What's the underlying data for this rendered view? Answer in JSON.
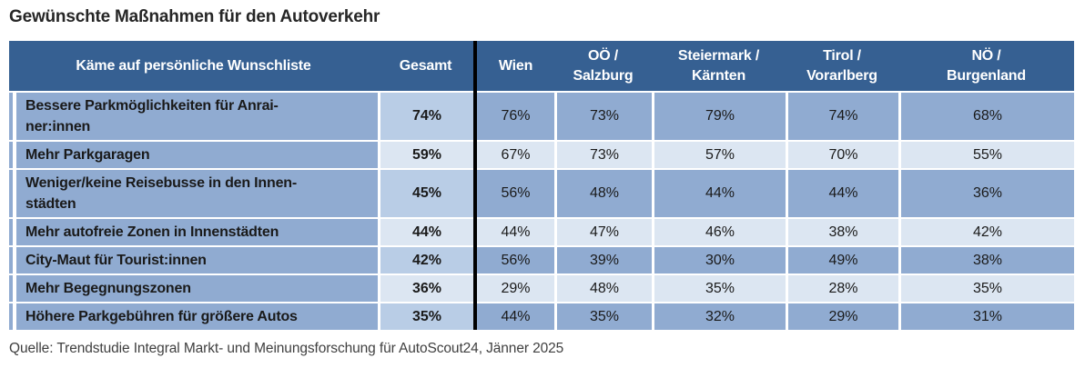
{
  "title": "Gewünschte Maßnahmen für den Autoverkehr",
  "source": "Quelle: Trendstudie Integral Markt- und Meinungsforschung für AutoScout24, Jänner 2025",
  "colors": {
    "header_bg": "#366092",
    "cell_medium": "#90ABD1",
    "cell_gesamt": "#B9CDE6",
    "cell_light": "#DCE6F2",
    "divider": "#000000",
    "header_text": "#FFFFFF",
    "text": "#1A1A1A",
    "title_text": "#262626",
    "source_text": "#3F3F3F"
  },
  "table": {
    "header": {
      "wishlist": "Käme auf persönliche Wunschliste",
      "gesamt": "Gesamt",
      "regions": [
        {
          "line1": "Wien",
          "line2": ""
        },
        {
          "line1": "OÖ /",
          "line2": "Salzburg"
        },
        {
          "line1": "Steiermark /",
          "line2": "Kärnten"
        },
        {
          "line1": "Tirol /",
          "line2": "Vorarlberg"
        },
        {
          "line1": "NÖ /",
          "line2": "Burgenland"
        }
      ]
    },
    "rows": [
      {
        "label": "Bessere Parkmöglichkeiten für Anrai-\nner:innen",
        "gesamt": "74%",
        "wien": "76%",
        "ooe_salzburg": "73%",
        "steiermark_kaernten": "79%",
        "tirol_vorarlberg": "74%",
        "noe_burgenland": "68%"
      },
      {
        "label": "Mehr Parkgaragen",
        "gesamt": "59%",
        "wien": "67%",
        "ooe_salzburg": "73%",
        "steiermark_kaernten": "57%",
        "tirol_vorarlberg": "70%",
        "noe_burgenland": "55%"
      },
      {
        "label": "Weniger/keine Reisebusse in den Innen-\nstädten",
        "gesamt": "45%",
        "wien": "56%",
        "ooe_salzburg": "48%",
        "steiermark_kaernten": "44%",
        "tirol_vorarlberg": "44%",
        "noe_burgenland": "36%"
      },
      {
        "label": "Mehr autofreie Zonen in Innenstädten",
        "gesamt": "44%",
        "wien": "44%",
        "ooe_salzburg": "47%",
        "steiermark_kaernten": "46%",
        "tirol_vorarlberg": "38%",
        "noe_burgenland": "42%"
      },
      {
        "label": "City-Maut für Tourist:innen",
        "gesamt": "42%",
        "wien": "56%",
        "ooe_salzburg": "39%",
        "steiermark_kaernten": "30%",
        "tirol_vorarlberg": "49%",
        "noe_burgenland": "38%"
      },
      {
        "label": "Mehr Begegnungszonen",
        "gesamt": "36%",
        "wien": "29%",
        "ooe_salzburg": "48%",
        "steiermark_kaernten": "35%",
        "tirol_vorarlberg": "28%",
        "noe_burgenland": "35%"
      },
      {
        "label": "Höhere Parkgebühren für größere Autos",
        "gesamt": "35%",
        "wien": "44%",
        "ooe_salzburg": "35%",
        "steiermark_kaernten": "32%",
        "tirol_vorarlberg": "29%",
        "noe_burgenland": "31%"
      }
    ]
  },
  "chart_data": {
    "type": "table",
    "title": "Gewünschte Maßnahmen für den Autoverkehr",
    "columns": [
      "Käme auf persönliche Wunschliste",
      "Gesamt",
      "Wien",
      "OÖ / Salzburg",
      "Steiermark / Kärnten",
      "Tirol / Vorarlberg",
      "NÖ / Burgenland"
    ],
    "rows": [
      [
        "Bessere Parkmöglichkeiten für Anrainer:innen",
        "74%",
        "76%",
        "73%",
        "79%",
        "74%",
        "68%"
      ],
      [
        "Mehr Parkgaragen",
        "59%",
        "67%",
        "73%",
        "57%",
        "70%",
        "55%"
      ],
      [
        "Weniger/keine Reisebusse in den Innenstädten",
        "45%",
        "56%",
        "48%",
        "44%",
        "44%",
        "36%"
      ],
      [
        "Mehr autofreie Zonen in Innenstädten",
        "44%",
        "44%",
        "47%",
        "46%",
        "38%",
        "42%"
      ],
      [
        "City-Maut für Tourist:innen",
        "42%",
        "56%",
        "39%",
        "30%",
        "49%",
        "38%"
      ],
      [
        "Mehr Begegnungszonen",
        "36%",
        "29%",
        "48%",
        "35%",
        "28%",
        "35%"
      ],
      [
        "Höhere Parkgebühren für größere Autos",
        "35%",
        "44%",
        "35%",
        "32%",
        "29%",
        "31%"
      ]
    ],
    "source": "Quelle: Trendstudie Integral Markt- und Meinungsforschung für AutoScout24, Jänner 2025",
    "notes": "Gesamt column highlighted lighter; rows alternate medium/light blue; black vertical rule separates Gesamt from regional columns"
  }
}
